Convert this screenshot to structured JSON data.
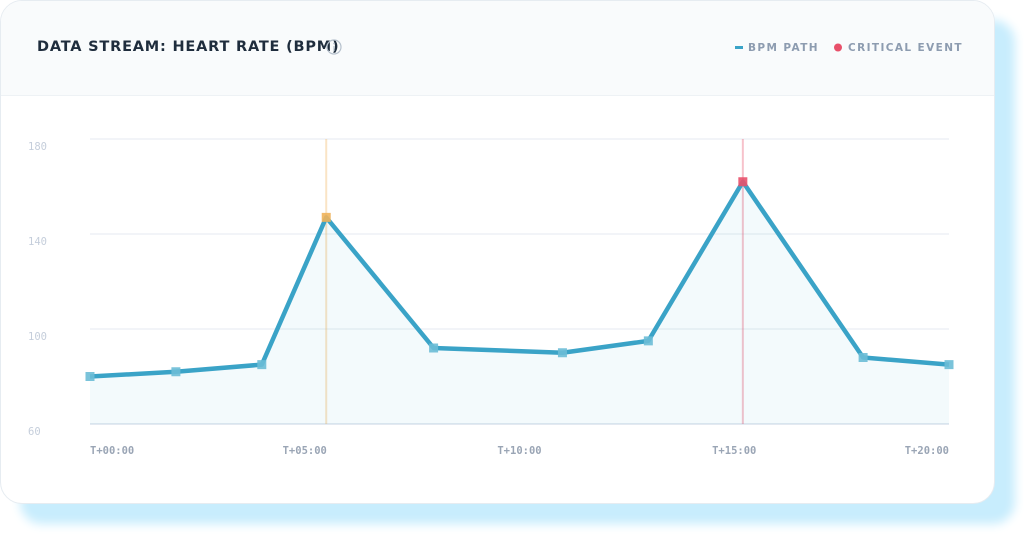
{
  "chart_data": {
    "type": "line",
    "title": "DATA STREAM: HEART RATE (BPM)",
    "xlim": [
      0,
      20
    ],
    "xticks": [
      {
        "value": 0,
        "label": "T+00:00"
      },
      {
        "value": 5,
        "label": "T+05:00"
      },
      {
        "value": 10,
        "label": "T+10:00"
      },
      {
        "value": 15,
        "label": "T+15:00"
      },
      {
        "value": 20,
        "label": "T+20:00"
      }
    ],
    "ylim": [
      60,
      180
    ],
    "yticks": [
      60,
      100,
      140,
      180
    ],
    "grid": true,
    "legend": "top-right",
    "series": [
      {
        "name": "BPM PATH",
        "color": "#3aa3c7",
        "marker_color": "#6bbdd6",
        "x": [
          0,
          2,
          4,
          5.5,
          8,
          11,
          13,
          15.2,
          18,
          20
        ],
        "values": [
          80,
          82,
          85,
          147,
          92,
          90,
          95,
          162,
          88,
          85
        ]
      }
    ],
    "events": {
      "name": "CRITICAL EVENT",
      "color": "#e8506a",
      "x": [
        5.5,
        15.2
      ],
      "colors": [
        "#f0b35a",
        "#e8506a"
      ]
    }
  }
}
